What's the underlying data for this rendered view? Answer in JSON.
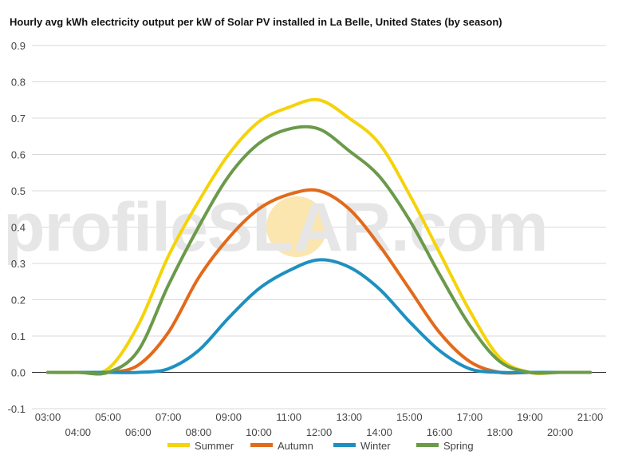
{
  "chart_data": {
    "type": "line",
    "title": "Hourly avg kWh electricity output per kW of Solar PV installed in La Belle, United States (by season)",
    "xlabel": "",
    "ylabel": "",
    "x": [
      "03:00",
      "04:00",
      "05:00",
      "06:00",
      "07:00",
      "08:00",
      "09:00",
      "10:00",
      "11:00",
      "12:00",
      "13:00",
      "14:00",
      "15:00",
      "16:00",
      "17:00",
      "18:00",
      "19:00",
      "20:00",
      "21:00"
    ],
    "ylim": [
      -0.1,
      0.9
    ],
    "yticks": [
      "0.9",
      "0.8",
      "0.7",
      "0.6",
      "0.5",
      "0.4",
      "0.3",
      "0.2",
      "0.1",
      "0.0",
      "-0.1"
    ],
    "grid": true,
    "legend": "bottom",
    "series": [
      {
        "name": "Summer",
        "color": "#f5d30a",
        "values": [
          0,
          0,
          0.01,
          0.13,
          0.32,
          0.47,
          0.6,
          0.69,
          0.73,
          0.75,
          0.7,
          0.63,
          0.49,
          0.33,
          0.17,
          0.04,
          0,
          0,
          0
        ]
      },
      {
        "name": "Autumn",
        "color": "#e26a1b",
        "values": [
          0,
          0,
          0,
          0.02,
          0.11,
          0.26,
          0.37,
          0.45,
          0.49,
          0.5,
          0.45,
          0.35,
          0.23,
          0.11,
          0.03,
          0,
          0,
          0,
          0
        ]
      },
      {
        "name": "Winter",
        "color": "#1e90c0",
        "values": [
          0,
          0,
          0,
          0,
          0.01,
          0.06,
          0.15,
          0.23,
          0.28,
          0.31,
          0.29,
          0.23,
          0.14,
          0.06,
          0.01,
          0,
          0,
          0,
          0
        ]
      },
      {
        "name": "Spring",
        "color": "#6a9a4a",
        "values": [
          0,
          0,
          0,
          0.06,
          0.24,
          0.4,
          0.54,
          0.63,
          0.67,
          0.67,
          0.61,
          0.54,
          0.42,
          0.27,
          0.13,
          0.03,
          0,
          0,
          0
        ]
      }
    ]
  },
  "watermark": {
    "pre": "profile",
    "s": "S",
    "post": "LAR.com",
    "sun_color": "#fbe6b0"
  }
}
